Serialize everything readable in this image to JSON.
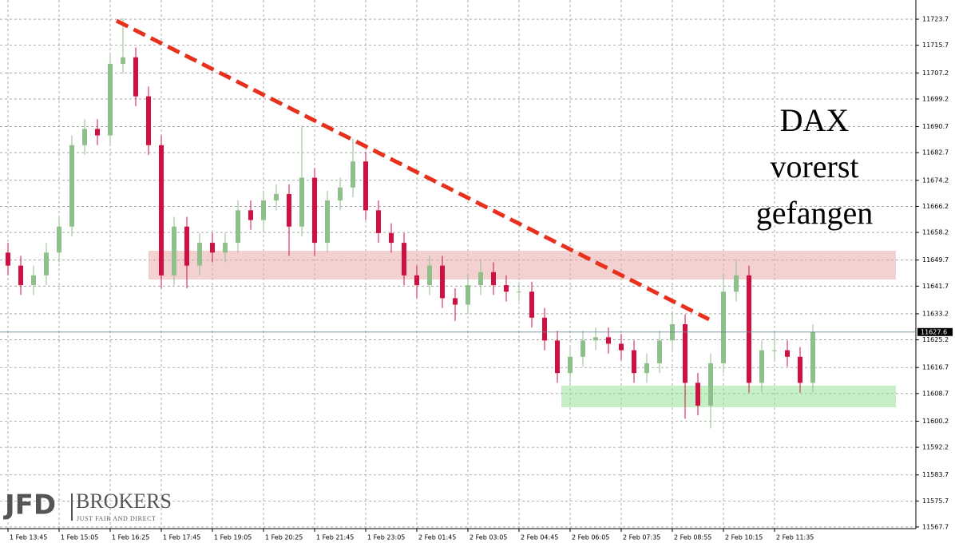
{
  "chart_data": {
    "type": "candlestick",
    "categories": [
      "1 Feb 13:45",
      null,
      null,
      null,
      "1 Feb 15:05",
      null,
      null,
      null,
      "1 Feb 16:25",
      null,
      null,
      null,
      "1 Feb 17:45",
      null,
      null,
      null,
      "1 Feb 19:05",
      null,
      null,
      null,
      "1 Feb 20:25",
      null,
      null,
      null,
      "1 Feb 21:45",
      null,
      null,
      null,
      "1 Feb 23:05",
      null,
      null,
      null,
      "2 Feb 01:45",
      null,
      null,
      null,
      "2 Feb 03:05",
      null,
      null,
      null,
      "2 Feb 04:45",
      null,
      null,
      null,
      "2 Feb 06:05",
      null,
      null,
      null,
      "2 Feb 07:35",
      null,
      null,
      null,
      "2 Feb 08:55",
      null,
      null,
      null,
      "2 Feb 10:15",
      null,
      null,
      null,
      "2 Feb 11:35",
      null,
      null,
      null
    ],
    "open": [
      11652,
      11648,
      11642,
      11645,
      11652,
      11660,
      11685,
      11690,
      11688,
      11710,
      11712,
      11700,
      11685,
      11645,
      11660,
      11648,
      11655,
      11652,
      11655,
      11665,
      11662,
      11668,
      11670,
      11660,
      11675,
      11655,
      11668,
      11672,
      11680,
      11665,
      11658,
      11655,
      11645,
      11642,
      11648,
      11638,
      11636,
      11642,
      11646,
      11642,
      11640,
      11640,
      11632,
      11625,
      11615,
      11620,
      11625,
      11626,
      11624,
      11622,
      11615,
      11618,
      11625,
      11630,
      11612,
      11605,
      11618,
      11640,
      11645,
      11612,
      11622,
      11622,
      11620,
      11612
    ],
    "high": [
      11655,
      11651,
      11648,
      11655,
      11663,
      11688,
      11693,
      11693,
      11713,
      11724,
      11715,
      11703,
      11688,
      11663,
      11663,
      11658,
      11658,
      11658,
      11668,
      11668,
      11671,
      11673,
      11673,
      11691,
      11678,
      11671,
      11675,
      11687,
      11683,
      11668,
      11661,
      11658,
      11648,
      11651,
      11651,
      11641,
      11645,
      11650,
      11649,
      11645,
      11643,
      11643,
      11635,
      11628,
      11623,
      11628,
      11629,
      11629,
      11627,
      11625,
      11621,
      11628,
      11634,
      11633,
      11615,
      11621,
      11645,
      11650,
      11648,
      11625,
      11628,
      11625,
      11623,
      11630
    ],
    "low": [
      11645,
      11639,
      11639,
      11642,
      11649,
      11657,
      11682,
      11685,
      11685,
      11707,
      11697,
      11682,
      11641,
      11642,
      11641,
      11645,
      11649,
      11649,
      11652,
      11659,
      11659,
      11665,
      11651,
      11657,
      11651,
      11652,
      11665,
      11669,
      11662,
      11655,
      11652,
      11642,
      11638,
      11639,
      11635,
      11631,
      11633,
      11639,
      11639,
      11637,
      11637,
      11629,
      11622,
      11612,
      11612,
      11617,
      11622,
      11621,
      11619,
      11612,
      11612,
      11615,
      11622,
      11601,
      11602,
      11598,
      11615,
      11637,
      11609,
      11609,
      11619,
      11617,
      11609,
      11609
    ],
    "close": [
      11648,
      11642,
      11645,
      11652,
      11660,
      11685,
      11690,
      11688,
      11710,
      11712,
      11700,
      11685,
      11645,
      11660,
      11648,
      11655,
      11652,
      11655,
      11665,
      11662,
      11668,
      11670,
      11660,
      11675,
      11655,
      11668,
      11672,
      11680,
      11665,
      11658,
      11655,
      11645,
      11642,
      11648,
      11638,
      11636,
      11642,
      11646,
      11642,
      11640,
      11640,
      11632,
      11625,
      11615,
      11620,
      11625,
      11626,
      11624,
      11622,
      11615,
      11618,
      11625,
      11630,
      11612,
      11605,
      11618,
      11640,
      11645,
      11612,
      11622,
      11622,
      11620,
      11612,
      11627.6
    ],
    "up_color": "#8fbf8a",
    "down_color": "#d01040",
    "ylim": [
      11567.2,
      11729.6
    ],
    "yticks": [
      11723.7,
      11715.7,
      11707.2,
      11699.2,
      11690.7,
      11682.7,
      11674.2,
      11666.2,
      11658.2,
      11649.7,
      11641.7,
      11633.2,
      11625.2,
      11616.7,
      11608.7,
      11600.2,
      11592.2,
      11583.7,
      11575.7,
      11567.7
    ],
    "grid": true,
    "annotation": [
      "DAX",
      "vorerst",
      "gefangen"
    ]
  },
  "logo": {
    "name": "JFD",
    "brand": "BROKERS",
    "tagline": "JUST FAIR AND DIRECT"
  }
}
